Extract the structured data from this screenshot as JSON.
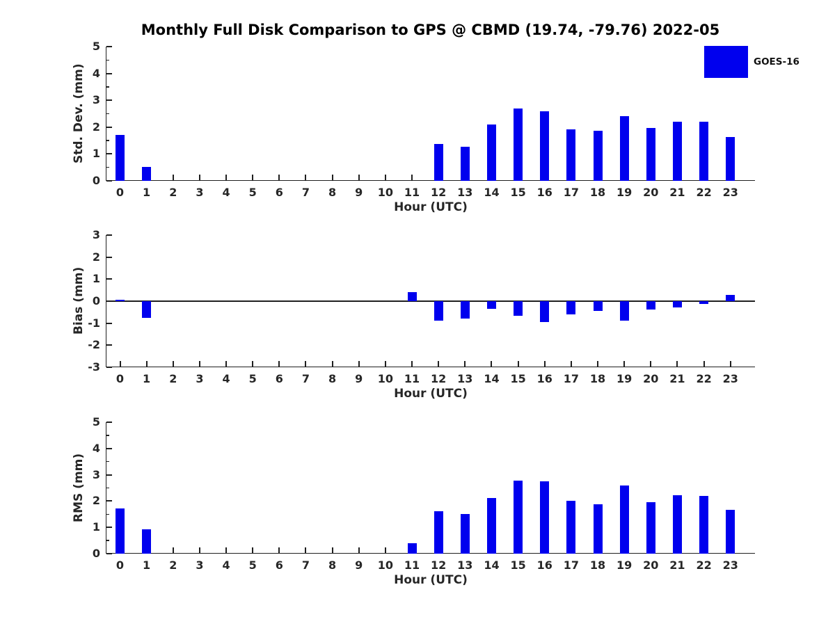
{
  "title": "Monthly Full Disk Comparison to GPS @ CBMD (19.74, -79.76) 2022-05",
  "legend": {
    "label": "GOES-16",
    "color": "#0000ee"
  },
  "colors": {
    "bar": "#0000ee",
    "axis": "#1f1f1f",
    "text": "#262626"
  },
  "chart_data": [
    {
      "type": "bar",
      "name": "std-dev",
      "ylabel": "Std. Dev. (mm)",
      "xlabel": "Hour (UTC)",
      "categories": [
        "0",
        "1",
        "2",
        "3",
        "4",
        "5",
        "6",
        "7",
        "8",
        "9",
        "10",
        "11",
        "12",
        "13",
        "14",
        "15",
        "16",
        "17",
        "18",
        "19",
        "20",
        "21",
        "22",
        "23"
      ],
      "values": [
        1.71,
        0.52,
        0,
        0,
        0,
        0,
        0,
        0,
        0,
        0,
        0,
        0,
        1.38,
        1.26,
        2.11,
        2.69,
        2.6,
        1.93,
        1.86,
        2.41,
        1.96,
        2.21,
        2.19,
        1.63
      ],
      "ylim": [
        0,
        5
      ],
      "yticks": [
        0,
        1,
        2,
        3,
        4,
        5
      ],
      "minor_tick_step": 0.5,
      "grid": false,
      "legend_position": "top-right"
    },
    {
      "type": "bar",
      "name": "bias",
      "ylabel": "Bias (mm)",
      "xlabel": "Hour (UTC)",
      "categories": [
        "0",
        "1",
        "2",
        "3",
        "4",
        "5",
        "6",
        "7",
        "8",
        "9",
        "10",
        "11",
        "12",
        "13",
        "14",
        "15",
        "16",
        "17",
        "18",
        "19",
        "20",
        "21",
        "22",
        "23"
      ],
      "values": [
        0.07,
        -0.77,
        0,
        0,
        0,
        0,
        0,
        0,
        0,
        0,
        0,
        0.4,
        -0.87,
        -0.79,
        -0.35,
        -0.66,
        -0.95,
        -0.61,
        -0.45,
        -0.87,
        -0.37,
        -0.27,
        -0.12,
        0.27
      ],
      "ylim": [
        -3,
        3
      ],
      "yticks": [
        -3,
        -2,
        -1,
        0,
        1,
        2,
        3
      ],
      "zero_line": true,
      "grid": false
    },
    {
      "type": "bar",
      "name": "rms",
      "ylabel": "RMS (mm)",
      "xlabel": "Hour (UTC)",
      "categories": [
        "0",
        "1",
        "2",
        "3",
        "4",
        "5",
        "6",
        "7",
        "8",
        "9",
        "10",
        "11",
        "12",
        "13",
        "14",
        "15",
        "16",
        "17",
        "18",
        "19",
        "20",
        "21",
        "22",
        "23"
      ],
      "values": [
        1.72,
        0.93,
        0,
        0,
        0,
        0,
        0,
        0,
        0,
        0,
        0,
        0.4,
        1.61,
        1.5,
        2.12,
        2.78,
        2.75,
        2.02,
        1.88,
        2.59,
        1.97,
        2.23,
        2.19,
        1.66
      ],
      "ylim": [
        0,
        5
      ],
      "yticks": [
        0,
        1,
        2,
        3,
        4,
        5
      ],
      "minor_tick_step": 0.5,
      "grid": false
    }
  ]
}
